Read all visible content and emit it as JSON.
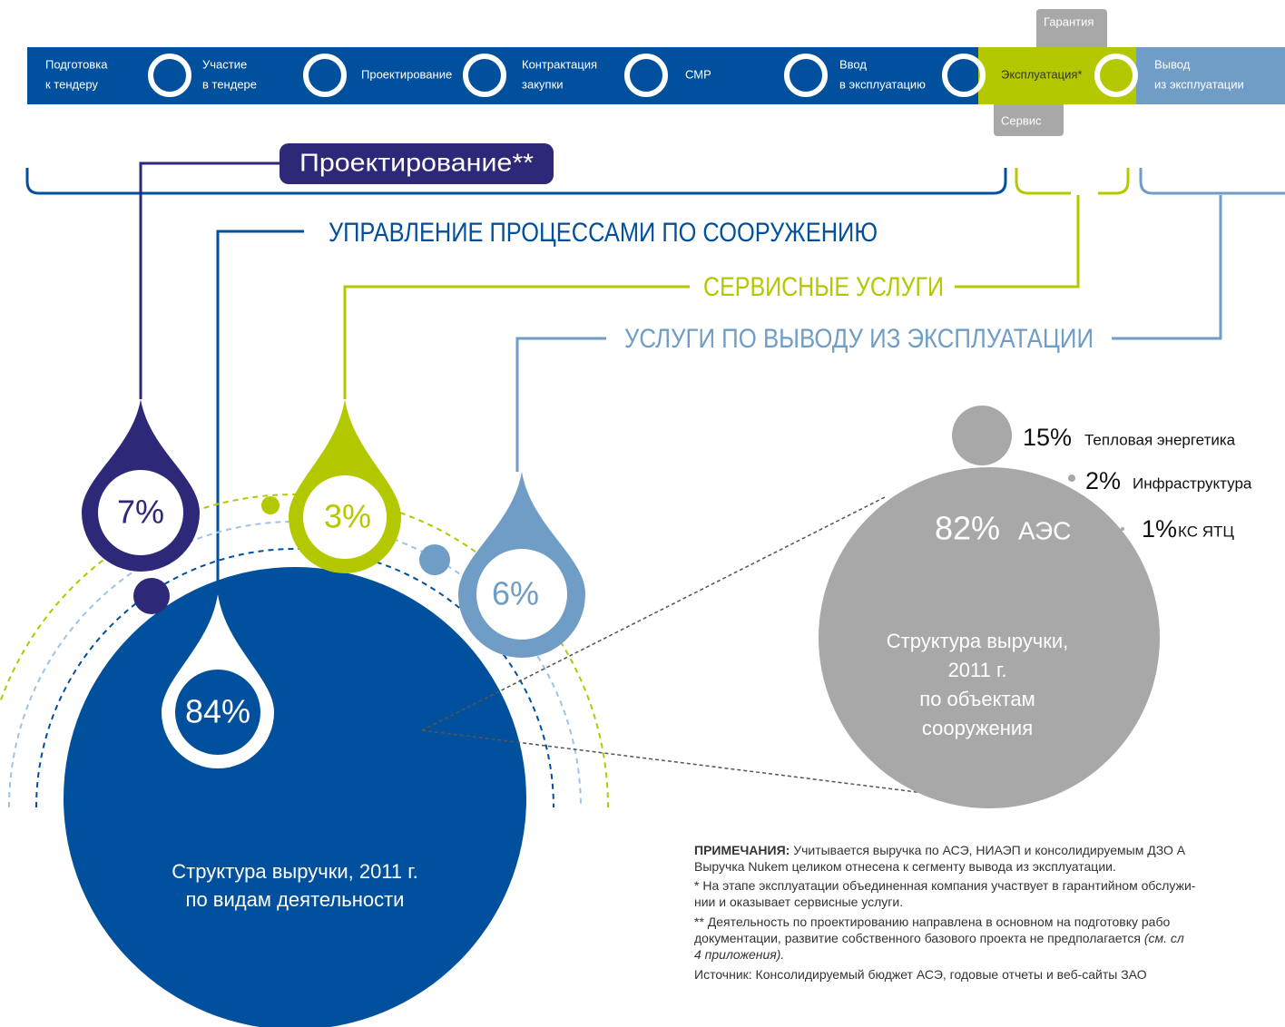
{
  "process": {
    "steps": [
      [
        "Подготовка",
        "к тендеру"
      ],
      [
        "Участие",
        "в тендере"
      ],
      [
        "Проектирование"
      ],
      [
        "Контрактация",
        "закупки"
      ],
      [
        "СМР"
      ],
      [
        "Ввод",
        "в эксплуатацию"
      ],
      [
        "Эксплуатация*"
      ],
      [
        "Вывод",
        "из эксплуатации"
      ]
    ],
    "warranty": "Гарантия",
    "service": "Сервис"
  },
  "design_label": "Проектирование**",
  "headings": {
    "construction": "УПРАВЛЕНИЕ ПРОЦЕССАМИ ПО СООРУЖЕНИЮ",
    "services": "СЕРВИСНЫЕ УСЛУГИ",
    "decommissioning": "УСЛУГИ ПО ВЫВОДУ ИЗ ЭКСПЛУАТАЦИИ"
  },
  "drops": {
    "design": "7%",
    "services": "3%",
    "decommissioning": "6%",
    "construction": "84%"
  },
  "main_circle": [
    "Структура выручки, 2011 г.",
    "по видам деятельности"
  ],
  "objects": {
    "npp_value": "82%",
    "npp_label": "АЭС",
    "items": [
      {
        "value": "15%",
        "label": "Тепловая энергетика"
      },
      {
        "value": "2%",
        "label": "Инфраструктура"
      },
      {
        "value": "1%",
        "label": "КС ЯТЦ"
      }
    ],
    "caption": [
      "Структура выручки,",
      "2011 г.",
      "по объектам",
      "сооружения"
    ]
  },
  "notes": [
    [
      "ПРИМЕЧАНИЯ:",
      " Учитывается выручка по АСЭ, НИАЭП и консолидируемым ДЗО А"
    ],
    [
      "Выручка Nukem  целиком отнесена к сегменту вывода из эксплуатации."
    ],
    [
      "* На этапе эксплуатации объединенная компания участвует в гарантийном обслужи-"
    ],
    [
      "нии и оказывает сервисные услуги."
    ],
    [
      "** Деятельность по проектированию направлена в основном на подготовку рабо"
    ],
    [
      "документации, развитие собственного базового проекта не предполагается ",
      "(см. сл"
    ],
    [
      "4 приложения)."
    ],
    [
      "Источник: Консолидируемый бюджет АСЭ, годовые отчеты и веб-сайты ЗАО"
    ]
  ]
}
